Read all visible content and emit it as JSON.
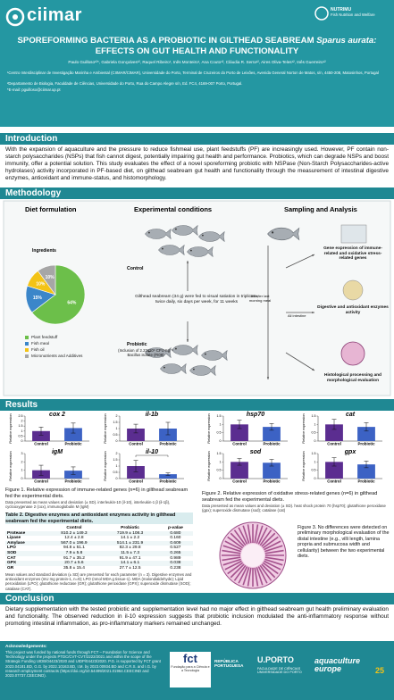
{
  "header": {
    "logo": "ciimar",
    "partner_logo": "NUTRIMU",
    "partner_tagline": "Fish Nutrition and Welfare",
    "title_1": "SPOREFORMING BACTERIA AS A PROBIOTIC IN GILTHEAD SEABREAM",
    "title_species": "Sparus aurata:",
    "title_2": "EFFECTS ON GUT HEALTH AND FUNCTIONALITY",
    "authors": "Paulo Guilloso¹²*, Gabriela Gonçalves¹², Raquel Ribeiro¹, Inês Monteiro¹, Ana Couto¹², Cláudia R. Serra¹², Aires Oliva-Teles¹², Inês Guerreiro¹²",
    "affiliations": [
      "¹Centro Interdisciplinar de Investigação Marinha e Ambiental (CIIMAR/CIMAR), Universidade do Porto, Terminal de Cruzeiros do Porto de Leixões, Avenida General Norton de Matos, s/n, 4450-208, Matosinhos, Portugal",
      "²Departamento de Biologia, Faculdade de Ciências, Universidade do Porto, Rua do Campo Alegre s/n, Ed. FC4, 4169-007 Porto, Portugal.",
      "*E-mail: pguilloso@ciimar.up.pt"
    ]
  },
  "introduction": {
    "heading": "Introduction",
    "text": "With the expansion of aquaculture and the pressure to reduce fishmeal use, plant feedstuffs (PF) are increasingly used. However, PF contain non-starch polysaccharides (NSPs) that fish cannot digest, potentially impairing gut health and performance. Probiotics, which can degrade NSPs and boost immunity, offer a potential solution. This study evaluates the effect of a novel sporeforming probiotic with NSPase (Non-Starch Polysaccharides-active hydrolases) activity incorporated in PF-based diet, on gilthead seabream gut health and functionality through the measurement of intestinal digestive enzymes, antioxidant and immune-status, and histomorphology."
  },
  "methodology": {
    "heading": "Methodology",
    "columns": [
      "Diet formulation",
      "Experimental conditions",
      "Sampling and Analysis"
    ],
    "pie": {
      "type": "pie",
      "title": "Ingredients",
      "categories": [
        "Plant feedstuff",
        "Fish meal",
        "Fish oil",
        "Micronutrients and Additives"
      ],
      "values": [
        64,
        15,
        10,
        10
      ],
      "value_labels": [
        "64%",
        "15%",
        "10%",
        "10%"
      ],
      "colors": [
        "#6cbf4a",
        "#3b86c9",
        "#f3c316",
        "#a6a6a6"
      ]
    },
    "control_label": "Control",
    "feeding": "Gilthead seabream (34 g) were fed to visual satiation in triplicate, twice daily, six days per week, for 11 weeks",
    "probiotic_label": "Probiotic",
    "probiotic_detail": "(Inclusion of 2.23x10⁹ CFU Kg⁻¹ Bacillus isolate (FI09)",
    "sampling_time": "5h after last morning meal",
    "tissue": "All intestine",
    "analyses": [
      "Gene expression of immune-related and oxidative stress-related genes",
      "Digestive and antioxidant enzymes activity",
      "Histological processing and morphological evaluation"
    ]
  },
  "results": {
    "heading": "Results",
    "immune_charts": [
      {
        "type": "bar",
        "title": "cox 2",
        "ylabel": "Relative expression",
        "categories": [
          "Control",
          "Probiotic"
        ],
        "values": [
          1.0,
          1.3
        ],
        "errors": [
          0.4,
          0.5
        ],
        "colors": [
          "#5b2d90",
          "#3c62c4"
        ],
        "ylim": [
          0,
          2.5
        ],
        "yticks": [
          0,
          0.5,
          1,
          1.5,
          2,
          2.5
        ]
      },
      {
        "type": "bar",
        "title": "il-1b",
        "ylabel": "Relative expression",
        "categories": [
          "Control",
          "Probiotic"
        ],
        "values": [
          1.0,
          1.0
        ],
        "errors": [
          0.35,
          0.5
        ],
        "colors": [
          "#5b2d90",
          "#3c62c4"
        ],
        "ylim": [
          0,
          2
        ],
        "yticks": [
          0,
          0.5,
          1,
          1.5,
          2
        ]
      },
      {
        "type": "bar",
        "title": "igM",
        "ylabel": "Relative expression",
        "categories": [
          "Control",
          "Probiotic"
        ],
        "values": [
          1.0,
          0.95
        ],
        "errors": [
          0.6,
          0.45
        ],
        "colors": [
          "#5b2d90",
          "#3c62c4"
        ],
        "ylim": [
          0,
          3
        ],
        "yticks": [
          0,
          1,
          2,
          3
        ]
      },
      {
        "type": "bar",
        "title": "il-10",
        "ylabel": "Relative expression",
        "categories": [
          "Control",
          "Probiotic"
        ],
        "values": [
          1.0,
          0.35
        ],
        "errors": [
          0.45,
          0.1
        ],
        "colors": [
          "#5b2d90",
          "#3c62c4"
        ],
        "ylim": [
          0,
          2
        ],
        "yticks": [
          0,
          0.5,
          1,
          1.5,
          2
        ],
        "annotation": "*"
      }
    ],
    "figure1_caption": "Figure 1. Relative expression of immune-related genes (n=6) in gilthead seabream fed the experimental diets.",
    "figure1_note": "Data presented as mean values and deviation (± SD). interleukin-10 (il-10), interleukin-1 β (il-1β), cyclooxygenase 2 (cox), immunoglobulin M (IgM)",
    "oxidative_charts": [
      {
        "type": "bar",
        "title": "hsp70",
        "ylabel": "Relative expression",
        "categories": [
          "Control",
          "Probiotic"
        ],
        "values": [
          1.0,
          0.85
        ],
        "errors": [
          0.25,
          0.2
        ],
        "colors": [
          "#5b2d90",
          "#3c62c4"
        ],
        "ylim": [
          0,
          1.5
        ],
        "yticks": [
          0,
          0.5,
          1,
          1.5
        ]
      },
      {
        "type": "bar",
        "title": "cat",
        "ylabel": "Relative expression",
        "categories": [
          "Control",
          "Probiotic"
        ],
        "values": [
          1.0,
          0.85
        ],
        "errors": [
          0.3,
          0.25
        ],
        "colors": [
          "#5b2d90",
          "#3c62c4"
        ],
        "ylim": [
          0,
          1.5
        ],
        "yticks": [
          0,
          0.5,
          1,
          1.5
        ]
      },
      {
        "type": "bar",
        "title": "sod",
        "ylabel": "Relative expression",
        "categories": [
          "Control",
          "Probiotic"
        ],
        "values": [
          1.0,
          0.95
        ],
        "errors": [
          0.2,
          0.2
        ],
        "colors": [
          "#5b2d90",
          "#3c62c4"
        ],
        "ylim": [
          0,
          1.5
        ],
        "yticks": [
          0,
          0.5,
          1,
          1.5
        ]
      },
      {
        "type": "bar",
        "title": "gpx",
        "ylabel": "Relative expression",
        "categories": [
          "Control",
          "Probiotic"
        ],
        "values": [
          1.0,
          0.85
        ],
        "errors": [
          0.25,
          0.2
        ],
        "colors": [
          "#5b2d90",
          "#3c62c4"
        ],
        "ylim": [
          0,
          1.5
        ],
        "yticks": [
          0,
          0.5,
          1,
          1.5
        ]
      }
    ],
    "figure2_caption": "Figure 2. Relative expression of oxidative stress-related genes (n=6) in gilthead seabream fed the experimental diets.",
    "figure2_note": "Data presented as mean values and deviation (± SD). heat shock protein 70 (hsp70); glutathione peroxidase (gpx); superoxide dismutase (sod); catalase (cat)",
    "table": {
      "title": "Table 2. Digestive enzymes and antioxidant enzymes activity in gilthead seabream fed the experimental diets.",
      "header": [
        "Control",
        "Probiotic",
        "p-value"
      ],
      "rows": [
        [
          "Protease",
          "810.2 ± 149.3",
          "719.9 ± 108.3",
          "0.680"
        ],
        [
          "Lipase",
          "12.4 ± 2.8",
          "14.1 ± 2.2",
          "0.160"
        ],
        [
          "Amylase",
          "567.0 ± 196.9",
          "514.1 ± 231.9",
          "0.609"
        ],
        [
          "LPO",
          "94.8 ± 51.1",
          "82.3 ± 29.8",
          "0.527"
        ],
        [
          "SOD",
          "7.9 ± 5.8",
          "11.5 ± 7.3",
          "0.265"
        ],
        [
          "CAT",
          "91.7 ± 35.2",
          "91.9 ± 47.1",
          "0.989"
        ],
        [
          "GPX",
          "20.7 ± 5.6",
          "14.1 ± 6.1",
          "0.038"
        ],
        [
          "GR",
          "35.8 ± 15.4",
          "27.7 ± 12.5",
          "0.238"
        ]
      ],
      "note": "Mean values and standard deviation (± SD) are presented for each parameter (n = 3). Digestive enzymes and antioxidant enzymes (mU mg protein-1, n=9); LPO (nmol MDA g tissue-1). MDA (malondialdehyde); Lipid peroxidation (LPO); glutathione reductase (GR); glutathione peroxidase (GPX); superoxide dismutase (SOD); catalase (CAT)."
    },
    "figure3_caption": "Figure 3. No differences were detected on preliminary morphological evaluation of the distal intestine (e.g., villi length, lamina propria and submucosa width and cellularity) between the two experimental diets."
  },
  "conclusion": {
    "heading": "Conclusion",
    "text": "Dietary supplementation with the tested probiotic and supplementation level had no major effect in gilthead seabream gut health preliminary evaluation and functionality. The observed reduction in il-10 expression suggests that probiotic inclusion modulated the anti-inflammatory response without promoting intestinal inflammation, as pro-inflammatory markers remained unchanged."
  },
  "footer": {
    "acknowledgements_title": "Acknowledgements:",
    "acknowledgements": "This project was funded by national funds through FCT – Foundation for Science and Technology under the projects PTDC/CVT-CVT/2222/2021 and within the scope of the Strategic Funding UIDB/04423/2020 and UIDP/04423/2020. P.G. is supported by FCT grant 2023.04181.BD, G.G. by 2022.10163.BD, I.M. by 2023.00934.BD and C.R.S. and I.G. by research employment contracts (https://doi.org/10.54499/2021.01964.CEECIND and 2023.07737.CEECIND).",
    "logos": [
      "fct",
      "Fundação para a Ciência e a Tecnologia",
      "REPÚBLICA PORTUGUESA",
      "U.PORTO",
      "FACULDADE DE CIÊNCIAS UNIVERSIDADE DO PORTO",
      "aquaculture europe",
      "25"
    ]
  }
}
